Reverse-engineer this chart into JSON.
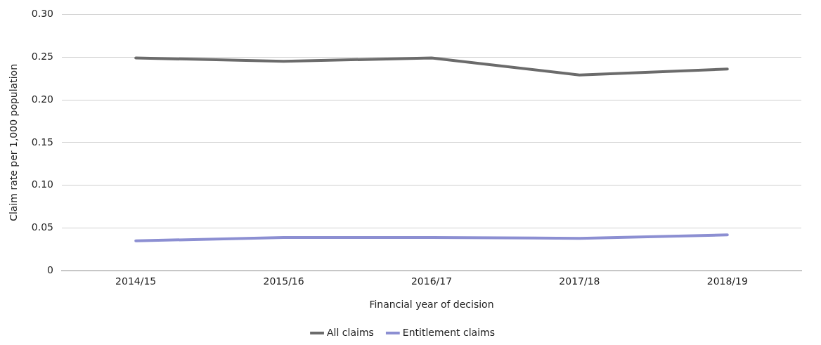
{
  "chart_data": {
    "type": "line",
    "xlabel": "Financial year of decision",
    "ylabel": "Claim rate per 1,000 population",
    "categories": [
      "2014/15",
      "2015/16",
      "2016/17",
      "2017/18",
      "2018/19"
    ],
    "series": [
      {
        "name": "All claims",
        "color": "#6b6b6b",
        "values": [
          0.249,
          0.245,
          0.249,
          0.229,
          0.236
        ]
      },
      {
        "name": "Entitlement claims",
        "color": "#8c8fd2",
        "values": [
          0.035,
          0.039,
          0.039,
          0.038,
          0.042
        ]
      }
    ],
    "ylim": [
      0,
      0.3
    ],
    "yticks": [
      0,
      {
        "value": 0.05,
        "label": "0.05"
      },
      {
        "value": 0.1,
        "label": "0.10"
      },
      {
        "value": 0.15,
        "label": "0.15"
      },
      {
        "value": 0.2,
        "label": "0.20"
      },
      {
        "value": 0.25,
        "label": "0.25"
      },
      {
        "value": 0.3,
        "label": "0.30"
      }
    ],
    "grid": "y",
    "legend": "bottom",
    "marker": "none",
    "line_style": "solid"
  }
}
